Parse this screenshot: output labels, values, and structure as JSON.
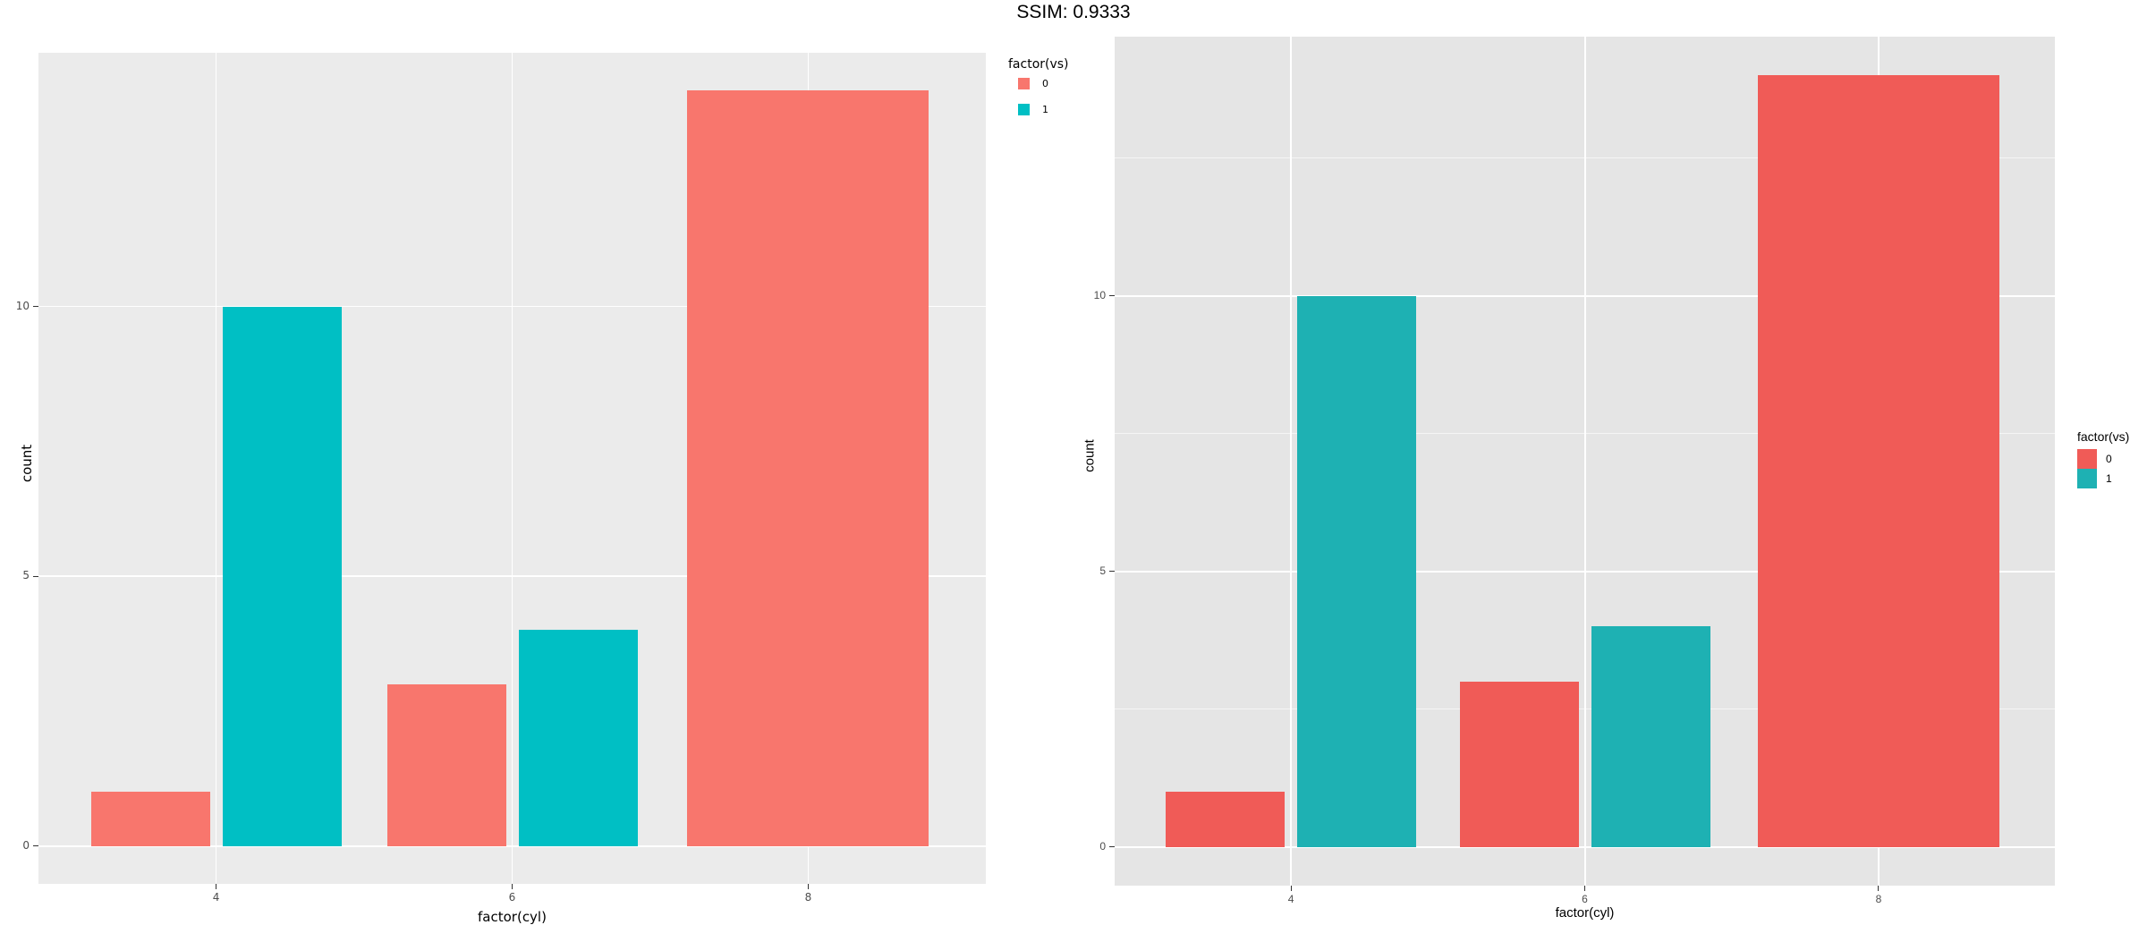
{
  "title": "SSIM: 0.9333",
  "chart_data": [
    {
      "type": "bar",
      "name": "left-original-plot",
      "title": "",
      "xlabel": "factor(cyl)",
      "ylabel": "count",
      "categories": [
        "4",
        "6",
        "8"
      ],
      "series": [
        {
          "name": "0",
          "color": "#F8766D",
          "values": [
            1,
            3,
            14
          ]
        },
        {
          "name": "1",
          "color": "#00BFC4",
          "values": [
            10,
            4,
            0
          ]
        }
      ],
      "legend_title": "factor(vs)",
      "legend_position": "top-right",
      "yticks": [
        0,
        5,
        10
      ],
      "ytick_labels": [
        "0",
        "5",
        "10"
      ],
      "minor_yticks": [],
      "ylim": [
        0,
        14.7
      ],
      "panel_bg": "#EBEBEB",
      "grid_color": "#FFFFFF",
      "grid": true
    },
    {
      "type": "bar",
      "name": "right-recreation-plot",
      "title": "",
      "xlabel": "factor(cyl)",
      "ylabel": "count",
      "categories": [
        "4",
        "6",
        "8"
      ],
      "series": [
        {
          "name": "0",
          "color": "#F05B57",
          "values": [
            1,
            3,
            14
          ]
        },
        {
          "name": "1",
          "color": "#1EB1B3",
          "values": [
            10,
            4,
            0
          ]
        }
      ],
      "legend_title": "factor(vs)",
      "legend_position": "middle-right",
      "yticks": [
        0,
        5,
        10
      ],
      "ytick_labels": [
        "0",
        "5",
        "10"
      ],
      "minor_yticks": [
        2.5,
        7.5,
        12.5
      ],
      "ylim": [
        0,
        14.7
      ],
      "panel_bg": "#E5E5E5",
      "grid_color": "#FFFFFF",
      "grid": true
    }
  ]
}
